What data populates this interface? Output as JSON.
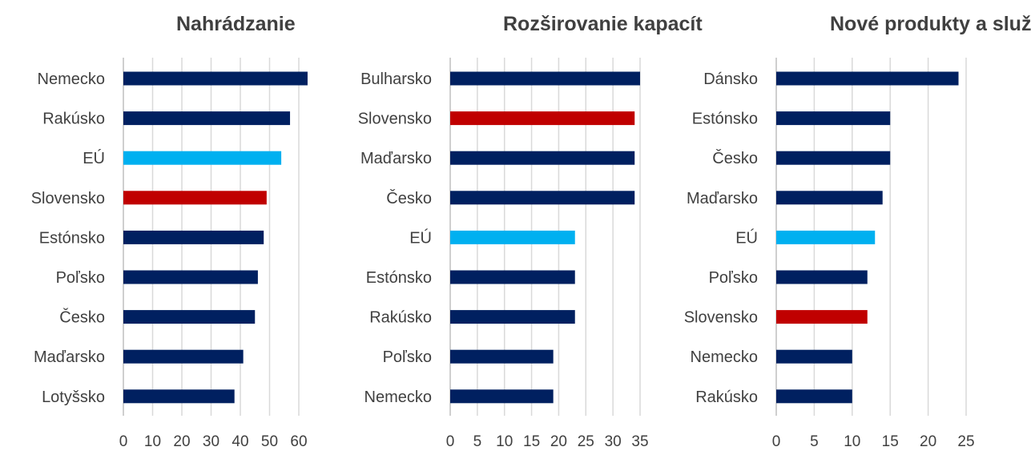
{
  "colors": {
    "default": "#002060",
    "slovakia": "#c00000",
    "eu": "#00b0f0",
    "text": "#404040",
    "grid": "#d9d9d9"
  },
  "chart_data": [
    {
      "type": "bar",
      "orientation": "horizontal",
      "title": "Nahrádzanie",
      "categories": [
        "Nemecko",
        "Rakúsko",
        "EÚ",
        "Slovensko",
        "Estónsko",
        "Poľsko",
        "Česko",
        "Maďarsko",
        "Lotyšsko"
      ],
      "values": [
        63,
        57,
        54,
        49,
        48,
        46,
        45,
        41,
        38
      ],
      "highlight": [
        "default",
        "default",
        "eu",
        "slovakia",
        "default",
        "default",
        "default",
        "default",
        "default"
      ],
      "xlim": [
        0,
        60
      ],
      "xticks": [
        "0",
        "10",
        "20",
        "30",
        "40",
        "50",
        "60"
      ],
      "xlabel": "",
      "ylabel": "",
      "grid": true
    },
    {
      "type": "bar",
      "orientation": "horizontal",
      "title": "Rozširovanie kapacít",
      "categories": [
        "Bulharsko",
        "Slovensko",
        "Maďarsko",
        "Česko",
        "EÚ",
        "Estónsko",
        "Rakúsko",
        "Poľsko",
        "Nemecko"
      ],
      "values": [
        35,
        34,
        34,
        34,
        23,
        23,
        23,
        19,
        19
      ],
      "highlight": [
        "default",
        "slovakia",
        "default",
        "default",
        "eu",
        "default",
        "default",
        "default",
        "default"
      ],
      "xlim": [
        0,
        35
      ],
      "xticks": [
        "0",
        "5",
        "10",
        "15",
        "20",
        "25",
        "30",
        "35"
      ],
      "xlabel": "",
      "ylabel": "",
      "grid": true
    },
    {
      "type": "bar",
      "orientation": "horizontal",
      "title": "Nové produkty a služby",
      "categories": [
        "Dánsko",
        "Estónsko",
        "Česko",
        "Maďarsko",
        "EÚ",
        "Poľsko",
        "Slovensko",
        "Nemecko",
        "Rakúsko"
      ],
      "values": [
        24,
        15,
        15,
        14,
        13,
        12,
        12,
        10,
        10
      ],
      "highlight": [
        "default",
        "default",
        "default",
        "default",
        "eu",
        "default",
        "slovakia",
        "default",
        "default"
      ],
      "xlim": [
        0,
        25
      ],
      "xticks": [
        "0",
        "5",
        "10",
        "15",
        "20",
        "25"
      ],
      "xlabel": "",
      "ylabel": "",
      "grid": true
    }
  ]
}
